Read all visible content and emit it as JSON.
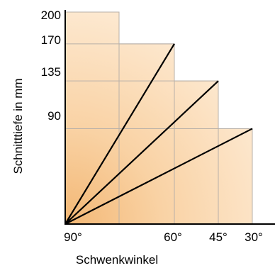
{
  "chart_data": {
    "type": "area",
    "title": "",
    "xlabel": "Schwenkwinkel",
    "ylabel": "Schnitttiefe in mm",
    "x_tick_labels": [
      "90°",
      "60°",
      "45°",
      "30°"
    ],
    "y_ticks": [
      200,
      170,
      135,
      90
    ],
    "ylim": [
      0,
      200
    ],
    "grid": false,
    "legend": "none",
    "series": [
      {
        "x_label": "90°",
        "cutting_depth": 200
      },
      {
        "x_label": "60°",
        "cutting_depth": 170
      },
      {
        "x_label": "45°",
        "cutting_depth": 135
      },
      {
        "x_label": "30°",
        "cutting_depth": 90
      }
    ],
    "colors": {
      "fill_light": "#fde8cf",
      "fill_mid": "#f9d2a4",
      "fill_dark": "#f3b774",
      "grid_line": "#b8b0a8",
      "axis": "#000000",
      "ray": "#000000"
    }
  }
}
